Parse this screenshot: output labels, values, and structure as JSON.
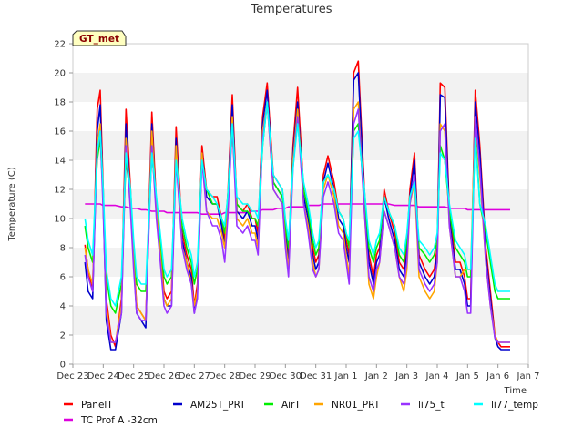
{
  "chart_data": {
    "type": "line",
    "title": "Temperatures",
    "xlabel": "Time",
    "ylabel": "Temperature (C)",
    "badge": "GT_met",
    "ylim": [
      0,
      22
    ],
    "yticks": [
      0,
      2,
      4,
      6,
      8,
      10,
      12,
      14,
      16,
      18,
      20,
      22
    ],
    "xlim": [
      0,
      15
    ],
    "xticks": [
      0,
      1,
      2,
      3,
      4,
      5,
      6,
      7,
      8,
      9,
      10,
      11,
      12,
      13,
      14,
      15
    ],
    "xtick_labels": [
      "Dec 23",
      "Dec 24",
      "Dec 25",
      "Dec 26",
      "Dec 27",
      "Dec 28",
      "Dec 29",
      "Dec 30",
      "Dec 31",
      "Jan 1",
      "Jan 2",
      "Jan 3",
      "Jan 4",
      "Jan 5",
      "Jan 6",
      "Jan 7"
    ],
    "grid": "horizontal bands",
    "legend_position": "bottom",
    "x": [
      0.4,
      0.5,
      0.65,
      0.8,
      0.9,
      1.0,
      1.1,
      1.25,
      1.4,
      1.6,
      1.75,
      1.9,
      2.0,
      2.1,
      2.25,
      2.4,
      2.6,
      2.75,
      2.9,
      3.0,
      3.1,
      3.25,
      3.4,
      3.6,
      3.75,
      3.9,
      4.0,
      4.1,
      4.25,
      4.4,
      4.6,
      4.75,
      4.9,
      5.0,
      5.1,
      5.25,
      5.4,
      5.6,
      5.75,
      5.9,
      6.0,
      6.1,
      6.25,
      6.4,
      6.6,
      6.75,
      6.9,
      7.0,
      7.1,
      7.25,
      7.4,
      7.6,
      7.75,
      7.9,
      8.0,
      8.1,
      8.25,
      8.4,
      8.6,
      8.75,
      8.9,
      9.0,
      9.1,
      9.25,
      9.4,
      9.6,
      9.75,
      9.9,
      10.0,
      10.1,
      10.25,
      10.4,
      10.6,
      10.75,
      10.9,
      11.0,
      11.1,
      11.25,
      11.4,
      11.6,
      11.75,
      11.9,
      12.0,
      12.1,
      12.25,
      12.4,
      12.6,
      12.75,
      12.9,
      13.0,
      13.1,
      13.25,
      13.4,
      13.6,
      13.75,
      13.9,
      14.0,
      14.1,
      14.25,
      14.4
    ],
    "series": [
      {
        "name": "PanelT",
        "color": "#ff0000",
        "values": [
          8.2,
          6.5,
          5.0,
          17.5,
          18.8,
          12.0,
          4.5,
          2.0,
          1.2,
          4.5,
          17.5,
          12.0,
          7.5,
          4.0,
          3.5,
          3.0,
          17.3,
          11.0,
          7.5,
          5.0,
          4.5,
          5.0,
          16.3,
          9.0,
          7.5,
          6.5,
          4.0,
          5.5,
          15.0,
          12.0,
          11.5,
          11.5,
          10.0,
          8.5,
          11.5,
          18.5,
          11.0,
          10.5,
          11.0,
          10.0,
          10.0,
          9.0,
          17.0,
          19.3,
          13.0,
          12.5,
          12.0,
          9.5,
          7.5,
          15.0,
          19.0,
          12.0,
          10.5,
          8.0,
          7.0,
          7.5,
          13.0,
          14.3,
          12.5,
          10.5,
          10.0,
          8.5,
          7.5,
          20.0,
          20.8,
          12.0,
          7.5,
          6.0,
          7.5,
          8.0,
          12.0,
          10.5,
          9.0,
          7.0,
          6.5,
          8.0,
          12.0,
          14.5,
          7.5,
          6.5,
          6.0,
          6.5,
          8.0,
          19.3,
          19.0,
          10.5,
          7.0,
          7.0,
          6.0,
          4.5,
          4.5,
          18.8,
          15.0,
          8.0,
          5.0,
          2.0,
          1.5,
          1.2,
          1.2,
          1.2
        ]
      },
      {
        "name": "TC Prof A -32cm",
        "color": "#dd00dd",
        "values": [
          11.0,
          11.0,
          11.0,
          11.0,
          11.0,
          10.9,
          10.9,
          10.9,
          10.9,
          10.8,
          10.8,
          10.7,
          10.7,
          10.7,
          10.6,
          10.6,
          10.5,
          10.5,
          10.5,
          10.5,
          10.4,
          10.4,
          10.4,
          10.4,
          10.4,
          10.4,
          10.4,
          10.4,
          10.3,
          10.3,
          10.3,
          10.3,
          10.3,
          10.4,
          10.4,
          10.4,
          10.4,
          10.4,
          10.4,
          10.5,
          10.5,
          10.5,
          10.6,
          10.6,
          10.6,
          10.7,
          10.7,
          10.7,
          10.8,
          10.8,
          10.8,
          10.8,
          10.9,
          10.9,
          10.9,
          10.9,
          11.0,
          11.0,
          11.0,
          11.0,
          11.0,
          11.0,
          11.0,
          11.0,
          11.0,
          11.0,
          11.0,
          11.0,
          11.0,
          11.0,
          11.0,
          11.0,
          10.9,
          10.9,
          10.9,
          10.9,
          10.9,
          10.9,
          10.8,
          10.8,
          10.8,
          10.8,
          10.8,
          10.8,
          10.8,
          10.7,
          10.7,
          10.7,
          10.7,
          10.6,
          10.6,
          10.6,
          10.6,
          10.6,
          10.6,
          10.6,
          10.6,
          10.6,
          10.6,
          10.6
        ]
      },
      {
        "name": "AM25T_PRT",
        "color": "#0000cc",
        "values": [
          7.0,
          5.0,
          4.5,
          16.0,
          17.8,
          11.0,
          3.0,
          1.0,
          1.0,
          3.5,
          16.5,
          11.0,
          7.0,
          3.5,
          3.0,
          2.5,
          16.5,
          10.5,
          7.0,
          4.5,
          4.0,
          4.0,
          15.5,
          8.5,
          7.0,
          6.0,
          3.5,
          5.0,
          14.5,
          11.5,
          11.0,
          11.0,
          9.5,
          8.0,
          11.0,
          17.8,
          10.5,
          10.0,
          10.5,
          9.5,
          9.5,
          8.5,
          16.5,
          18.8,
          12.5,
          12.0,
          11.5,
          9.0,
          7.0,
          14.5,
          18.0,
          11.5,
          10.0,
          7.5,
          6.5,
          7.0,
          12.5,
          13.8,
          12.0,
          10.0,
          9.5,
          8.0,
          7.0,
          19.5,
          20.0,
          11.5,
          7.0,
          5.5,
          7.0,
          7.5,
          11.5,
          10.0,
          8.5,
          6.5,
          6.0,
          7.5,
          11.5,
          14.0,
          7.0,
          6.0,
          5.5,
          6.0,
          7.5,
          18.5,
          18.3,
          10.0,
          6.5,
          6.5,
          5.5,
          4.0,
          4.0,
          18.0,
          14.5,
          7.5,
          4.5,
          1.8,
          1.2,
          1.0,
          1.0,
          1.0
        ]
      },
      {
        "name": "AirT",
        "color": "#00ee00",
        "values": [
          9.5,
          8.0,
          7.0,
          14.0,
          15.5,
          11.5,
          6.0,
          4.0,
          3.5,
          5.5,
          14.0,
          11.5,
          8.0,
          5.5,
          5.0,
          5.0,
          14.5,
          11.0,
          8.0,
          6.0,
          5.5,
          6.0,
          14.0,
          9.5,
          8.0,
          7.0,
          5.5,
          6.5,
          14.0,
          12.0,
          11.0,
          11.0,
          10.0,
          9.0,
          11.5,
          16.0,
          11.0,
          10.5,
          10.5,
          10.0,
          10.0,
          9.5,
          15.0,
          18.0,
          12.5,
          12.0,
          11.5,
          9.5,
          8.0,
          14.0,
          17.0,
          12.0,
          10.5,
          8.5,
          7.5,
          8.0,
          12.5,
          13.0,
          12.0,
          10.5,
          10.0,
          9.0,
          8.0,
          16.0,
          16.5,
          11.5,
          8.0,
          7.0,
          8.0,
          8.5,
          11.5,
          10.5,
          9.5,
          7.5,
          7.0,
          8.5,
          11.5,
          12.5,
          8.0,
          7.5,
          7.0,
          7.5,
          8.5,
          15.0,
          14.0,
          10.5,
          8.0,
          7.5,
          7.0,
          6.0,
          6.0,
          16.0,
          11.0,
          9.0,
          7.0,
          5.0,
          4.5,
          4.5,
          4.5,
          4.5
        ]
      },
      {
        "name": "NR01_PRT",
        "color": "#ffa500",
        "values": [
          8.0,
          6.5,
          5.5,
          15.0,
          16.5,
          11.0,
          4.0,
          1.5,
          1.5,
          4.0,
          15.5,
          11.0,
          7.0,
          4.0,
          3.5,
          3.0,
          16.0,
          10.5,
          7.0,
          4.5,
          4.0,
          4.5,
          15.0,
          8.0,
          7.0,
          5.5,
          4.0,
          5.0,
          14.5,
          10.5,
          10.0,
          10.0,
          9.0,
          8.0,
          10.5,
          17.0,
          10.0,
          9.5,
          10.0,
          9.0,
          9.0,
          8.0,
          16.0,
          18.0,
          12.0,
          11.5,
          11.0,
          8.5,
          6.5,
          14.0,
          17.5,
          11.0,
          9.5,
          7.0,
          6.0,
          6.5,
          12.0,
          13.0,
          11.5,
          9.5,
          9.0,
          7.5,
          6.0,
          17.5,
          18.0,
          10.5,
          5.5,
          4.5,
          6.0,
          7.0,
          10.5,
          9.5,
          8.0,
          6.0,
          5.0,
          6.5,
          11.0,
          12.5,
          6.0,
          5.0,
          4.5,
          5.0,
          7.0,
          16.5,
          16.0,
          9.5,
          6.0,
          6.0,
          6.5,
          6.5,
          6.5,
          17.0,
          13.0,
          7.0,
          4.0,
          2.0,
          1.5,
          1.5,
          1.5,
          1.5
        ]
      },
      {
        "name": "li75_t",
        "color": "#9933ff",
        "values": [
          7.5,
          6.0,
          5.0,
          14.5,
          16.0,
          10.5,
          3.5,
          1.5,
          1.5,
          3.5,
          15.0,
          10.5,
          6.5,
          3.5,
          3.0,
          3.0,
          15.0,
          10.0,
          6.5,
          4.0,
          3.5,
          4.0,
          14.0,
          8.0,
          6.5,
          5.5,
          3.5,
          4.5,
          14.0,
          10.5,
          9.5,
          9.5,
          8.5,
          7.0,
          10.0,
          16.5,
          9.5,
          9.0,
          9.5,
          8.5,
          8.5,
          7.5,
          15.5,
          18.0,
          12.0,
          11.5,
          11.0,
          8.0,
          6.0,
          13.5,
          17.0,
          11.0,
          9.0,
          6.5,
          6.0,
          6.5,
          11.5,
          12.5,
          11.0,
          9.0,
          8.5,
          7.0,
          5.5,
          16.5,
          17.5,
          10.5,
          6.0,
          5.0,
          6.5,
          7.0,
          10.5,
          9.5,
          8.0,
          6.0,
          5.5,
          7.0,
          11.0,
          13.0,
          6.5,
          5.5,
          5.0,
          5.5,
          7.0,
          16.0,
          16.5,
          9.5,
          6.0,
          6.0,
          5.0,
          3.5,
          3.5,
          17.0,
          13.5,
          7.0,
          4.0,
          1.8,
          1.5,
          1.5,
          1.5,
          1.5
        ]
      },
      {
        "name": "li77_temp",
        "color": "#00ffff",
        "values": [
          10.0,
          8.5,
          7.5,
          14.5,
          16.0,
          12.0,
          6.5,
          4.5,
          4.0,
          6.0,
          14.5,
          12.0,
          8.5,
          6.0,
          5.5,
          5.5,
          14.5,
          11.5,
          8.5,
          6.5,
          6.0,
          6.5,
          14.0,
          10.0,
          8.5,
          7.5,
          6.0,
          7.0,
          14.0,
          12.0,
          11.5,
          11.0,
          10.0,
          9.5,
          11.5,
          16.5,
          11.5,
          11.0,
          11.0,
          10.5,
          10.5,
          10.0,
          15.0,
          18.0,
          13.0,
          12.5,
          12.0,
          10.0,
          8.5,
          13.5,
          16.5,
          12.5,
          11.0,
          9.0,
          8.0,
          8.5,
          12.5,
          13.0,
          12.0,
          10.5,
          10.0,
          9.0,
          8.5,
          15.5,
          16.0,
          12.0,
          8.5,
          7.5,
          8.5,
          9.0,
          11.5,
          10.5,
          9.5,
          8.0,
          7.5,
          9.0,
          11.5,
          12.5,
          8.5,
          8.0,
          7.5,
          8.0,
          9.0,
          14.5,
          14.0,
          11.0,
          8.5,
          8.0,
          7.5,
          6.5,
          6.5,
          15.5,
          11.0,
          9.5,
          7.5,
          5.5,
          5.0,
          5.0,
          5.0,
          5.0
        ]
      }
    ]
  }
}
